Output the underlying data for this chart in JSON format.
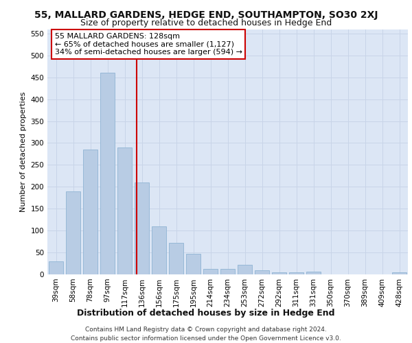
{
  "title": "55, MALLARD GARDENS, HEDGE END, SOUTHAMPTON, SO30 2XJ",
  "subtitle": "Size of property relative to detached houses in Hedge End",
  "xlabel": "Distribution of detached houses by size in Hedge End",
  "ylabel": "Number of detached properties",
  "bar_labels": [
    "39sqm",
    "58sqm",
    "78sqm",
    "97sqm",
    "117sqm",
    "136sqm",
    "156sqm",
    "175sqm",
    "195sqm",
    "214sqm",
    "234sqm",
    "253sqm",
    "272sqm",
    "292sqm",
    "311sqm",
    "331sqm",
    "350sqm",
    "370sqm",
    "389sqm",
    "409sqm",
    "428sqm"
  ],
  "bar_values": [
    30,
    190,
    285,
    460,
    290,
    210,
    110,
    72,
    47,
    13,
    12,
    22,
    10,
    5,
    5,
    7,
    0,
    0,
    0,
    0,
    5
  ],
  "bar_color": "#b8cce4",
  "bar_edgecolor": "#8fb4d4",
  "bar_width": 0.85,
  "vline_color": "#cc0000",
  "vline_x": 4.68,
  "annotation_text": "55 MALLARD GARDENS: 128sqm\n← 65% of detached houses are smaller (1,127)\n34% of semi-detached houses are larger (594) →",
  "annotation_box_color": "#ffffff",
  "annotation_box_edgecolor": "#cc0000",
  "ylim": [
    0,
    560
  ],
  "yticks": [
    0,
    50,
    100,
    150,
    200,
    250,
    300,
    350,
    400,
    450,
    500,
    550
  ],
  "grid_color": "#c8d4e8",
  "background_color": "#dce6f5",
  "footer_text": "Contains HM Land Registry data © Crown copyright and database right 2024.\nContains public sector information licensed under the Open Government Licence v3.0.",
  "title_fontsize": 10,
  "subtitle_fontsize": 9,
  "xlabel_fontsize": 9,
  "ylabel_fontsize": 8,
  "tick_fontsize": 7.5,
  "annotation_fontsize": 8,
  "footer_fontsize": 6.5
}
